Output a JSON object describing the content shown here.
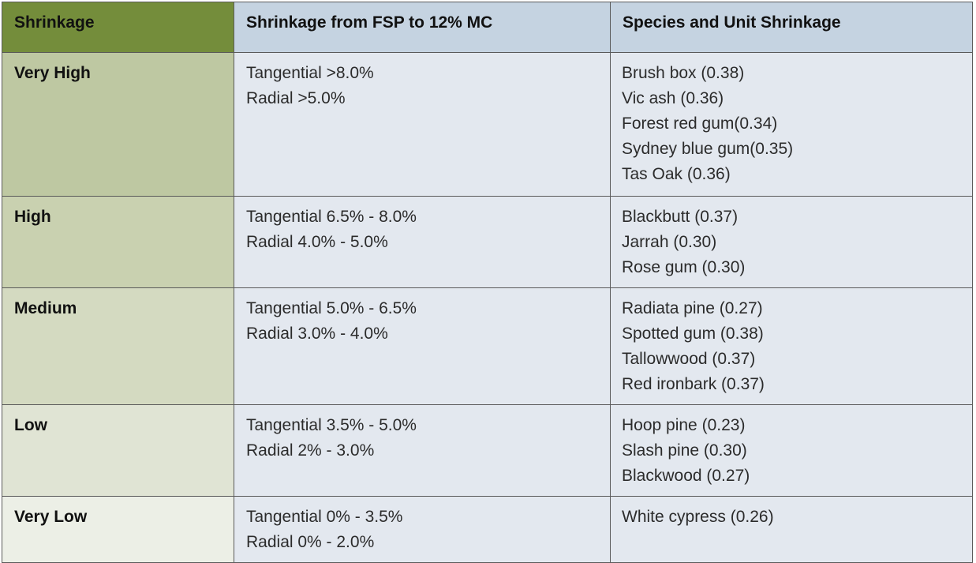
{
  "table": {
    "headers": [
      "Shrinkage",
      "Shrinkage from FSP to 12% MC",
      "Species and Unit Shrinkage"
    ],
    "header_colors": [
      "#748d3b",
      "#c5d3e1",
      "#c5d3e1"
    ],
    "rows": [
      {
        "category": "Very High",
        "category_color": "#bec8a2",
        "shrinkage": [
          "Tangential >8.0%",
          "Radial >5.0%"
        ],
        "species": [
          "Brush box (0.38)",
          "Vic ash (0.36)",
          "Forest red gum(0.34)",
          "Sydney blue gum(0.35)",
          "Tas Oak (0.36)"
        ]
      },
      {
        "category": "High",
        "category_color": "#c9d1b0",
        "shrinkage": [
          "Tangential 6.5% - 8.0%",
          "Radial 4.0% - 5.0%"
        ],
        "species": [
          "Blackbutt (0.37)",
          "Jarrah (0.30)",
          "Rose gum (0.30)"
        ]
      },
      {
        "category": "Medium",
        "category_color": "#d4dac1",
        "shrinkage": [
          "Tangential 5.0% - 6.5%",
          "Radial 3.0% - 4.0%"
        ],
        "species": [
          "Radiata pine (0.27)",
          "Spotted gum (0.38)",
          "Tallowwood (0.37)",
          "Red ironbark (0.37)"
        ]
      },
      {
        "category": "Low",
        "category_color": "#e0e4d4",
        "shrinkage": [
          "Tangential 3.5% - 5.0%",
          "Radial 2% - 3.0%"
        ],
        "species": [
          "Hoop pine (0.23)",
          "Slash pine (0.30)",
          "Blackwood (0.27)"
        ]
      },
      {
        "category": "Very Low",
        "category_color": "#ecefe6",
        "shrinkage": [
          "Tangential 0% - 3.5%",
          "Radial 0% - 2.0%"
        ],
        "species": [
          "White cypress (0.26)"
        ]
      }
    ]
  }
}
